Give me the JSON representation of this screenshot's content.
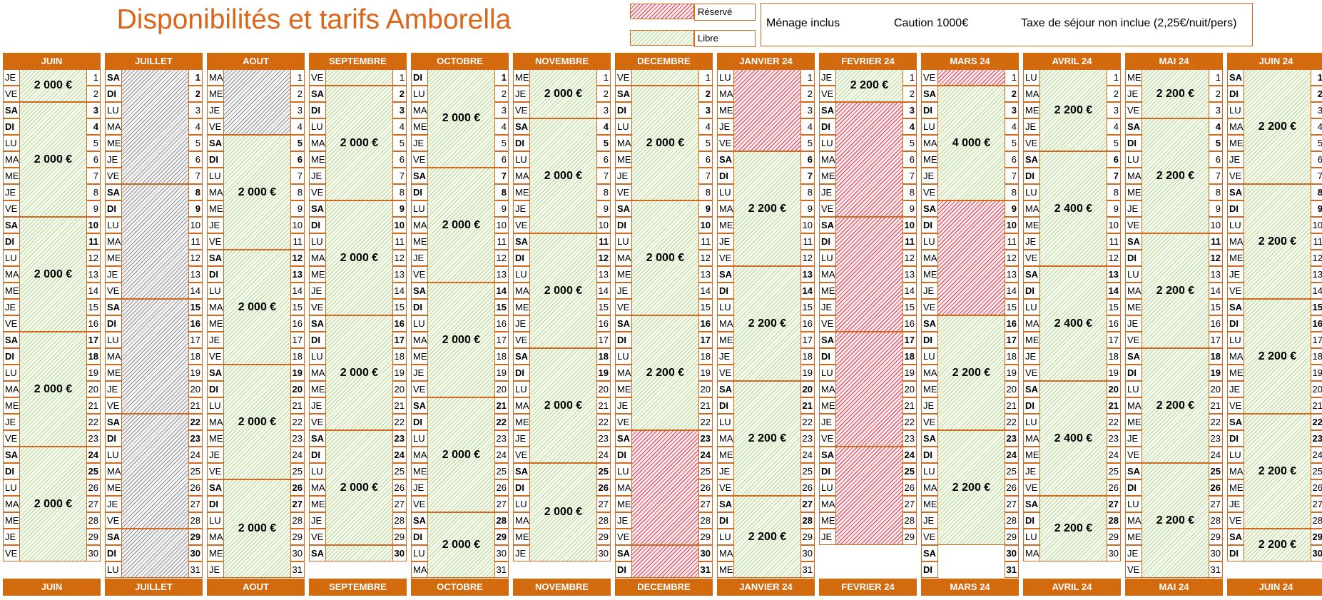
{
  "title": "Disponibilités et tarifs Amborella",
  "legend": [
    {
      "label": "Réservé",
      "status": "reserved",
      "color": "#E05A6E"
    },
    {
      "label": "Libre",
      "status": "free",
      "color": "#9BC57A"
    }
  ],
  "info": {
    "cleaning": "Ménage inclus",
    "deposit": "Caution 1000€",
    "tax": "Taxe de séjour non inclue (2,25€/nuit/pers)"
  },
  "months": [
    {
      "name": "JUIN",
      "days": 30,
      "first": "JE",
      "blocks": [
        {
          "s": 1,
          "e": 2,
          "st": "free",
          "p": "2 000 €"
        },
        {
          "s": 3,
          "e": 9,
          "st": "free",
          "p": "2 000 €"
        },
        {
          "s": 10,
          "e": 16,
          "st": "free",
          "p": "2 000 €"
        },
        {
          "s": 17,
          "e": 23,
          "st": "free",
          "p": "2 000 €"
        },
        {
          "s": 24,
          "e": 30,
          "st": "free",
          "p": "2 000 €"
        }
      ]
    },
    {
      "name": "JUILLET",
      "days": 31,
      "first": "SA",
      "blocks": [
        {
          "s": 1,
          "e": 7,
          "st": "past",
          "p": ""
        },
        {
          "s": 8,
          "e": 14,
          "st": "past",
          "p": ""
        },
        {
          "s": 15,
          "e": 21,
          "st": "past",
          "p": ""
        },
        {
          "s": 22,
          "e": 28,
          "st": "past",
          "p": ""
        },
        {
          "s": 29,
          "e": 31,
          "st": "past",
          "p": ""
        }
      ]
    },
    {
      "name": "AOUT",
      "days": 31,
      "first": "MA",
      "blocks": [
        {
          "s": 1,
          "e": 4,
          "st": "past",
          "p": ""
        },
        {
          "s": 5,
          "e": 11,
          "st": "free",
          "p": "2 000 €"
        },
        {
          "s": 12,
          "e": 18,
          "st": "free",
          "p": "2 000 €"
        },
        {
          "s": 19,
          "e": 25,
          "st": "free",
          "p": "2 000 €"
        },
        {
          "s": 26,
          "e": 31,
          "st": "free",
          "p": "2 000 €"
        }
      ]
    },
    {
      "name": "SEPTEMBRE",
      "days": 30,
      "first": "VE",
      "blocks": [
        {
          "s": 1,
          "e": 1,
          "st": "free",
          "p": ""
        },
        {
          "s": 2,
          "e": 8,
          "st": "free",
          "p": "2 000 €"
        },
        {
          "s": 9,
          "e": 15,
          "st": "free",
          "p": "2 000 €"
        },
        {
          "s": 16,
          "e": 22,
          "st": "free",
          "p": "2 000 €"
        },
        {
          "s": 23,
          "e": 29,
          "st": "free",
          "p": "2 000 €"
        },
        {
          "s": 30,
          "e": 30,
          "st": "free",
          "p": ""
        }
      ]
    },
    {
      "name": "OCTOBRE",
      "days": 31,
      "first": "DI",
      "blocks": [
        {
          "s": 1,
          "e": 6,
          "st": "free",
          "p": "2 000 €"
        },
        {
          "s": 7,
          "e": 13,
          "st": "free",
          "p": "2 000 €"
        },
        {
          "s": 14,
          "e": 20,
          "st": "free",
          "p": "2 000 €"
        },
        {
          "s": 21,
          "e": 27,
          "st": "free",
          "p": "2 000 €"
        },
        {
          "s": 28,
          "e": 31,
          "st": "free",
          "p": "2 000 €"
        }
      ]
    },
    {
      "name": "NOVEMBRE",
      "days": 30,
      "first": "ME",
      "blocks": [
        {
          "s": 1,
          "e": 3,
          "st": "free",
          "p": "2 000 €"
        },
        {
          "s": 4,
          "e": 10,
          "st": "free",
          "p": "2 000 €"
        },
        {
          "s": 11,
          "e": 17,
          "st": "free",
          "p": "2 000 €"
        },
        {
          "s": 18,
          "e": 24,
          "st": "free",
          "p": "2 000 €"
        },
        {
          "s": 25,
          "e": 30,
          "st": "free",
          "p": "2 000 €"
        }
      ]
    },
    {
      "name": "DECEMBRE",
      "days": 31,
      "first": "VE",
      "blocks": [
        {
          "s": 1,
          "e": 1,
          "st": "free",
          "p": ""
        },
        {
          "s": 2,
          "e": 8,
          "st": "free",
          "p": "2 000 €"
        },
        {
          "s": 9,
          "e": 15,
          "st": "free",
          "p": "2 000 €"
        },
        {
          "s": 16,
          "e": 22,
          "st": "free",
          "p": "2 200 €"
        },
        {
          "s": 23,
          "e": 29,
          "st": "reserved",
          "p": ""
        },
        {
          "s": 30,
          "e": 31,
          "st": "reserved",
          "p": ""
        }
      ]
    },
    {
      "name": "JANVIER 24",
      "days": 31,
      "first": "LU",
      "blocks": [
        {
          "s": 1,
          "e": 5,
          "st": "reserved",
          "p": ""
        },
        {
          "s": 6,
          "e": 12,
          "st": "free",
          "p": "2 200 €"
        },
        {
          "s": 13,
          "e": 19,
          "st": "free",
          "p": "2 200 €"
        },
        {
          "s": 20,
          "e": 26,
          "st": "free",
          "p": "2 200 €"
        },
        {
          "s": 27,
          "e": 31,
          "st": "free",
          "p": "2 200 €"
        }
      ]
    },
    {
      "name": "FEVRIER 24",
      "days": 29,
      "first": "JE",
      "blocks": [
        {
          "s": 1,
          "e": 2,
          "st": "free",
          "p": "2 200 €"
        },
        {
          "s": 3,
          "e": 9,
          "st": "reserved",
          "p": ""
        },
        {
          "s": 10,
          "e": 16,
          "st": "reserved",
          "p": ""
        },
        {
          "s": 17,
          "e": 23,
          "st": "reserved",
          "p": ""
        },
        {
          "s": 24,
          "e": 29,
          "st": "reserved",
          "p": ""
        }
      ]
    },
    {
      "name": "MARS 24",
      "days": 31,
      "first": "VE",
      "blocks": [
        {
          "s": 1,
          "e": 1,
          "st": "reserved",
          "p": ""
        },
        {
          "s": 2,
          "e": 8,
          "st": "free",
          "p": "4 000 €"
        },
        {
          "s": 9,
          "e": 15,
          "st": "reserved",
          "p": ""
        },
        {
          "s": 16,
          "e": 22,
          "st": "free",
          "p": "2 200 €"
        },
        {
          "s": 23,
          "e": 29,
          "st": "free",
          "p": "2 200 €"
        }
      ]
    },
    {
      "name": "AVRIL 24",
      "days": 30,
      "first": "LU",
      "blocks": [
        {
          "s": 1,
          "e": 5,
          "st": "free",
          "p": "2 200 €"
        },
        {
          "s": 6,
          "e": 12,
          "st": "free",
          "p": "2 400 €"
        },
        {
          "s": 13,
          "e": 19,
          "st": "free",
          "p": "2 400 €"
        },
        {
          "s": 20,
          "e": 26,
          "st": "free",
          "p": "2 400 €"
        },
        {
          "s": 27,
          "e": 30,
          "st": "free",
          "p": "2 200 €"
        }
      ]
    },
    {
      "name": "MAI 24",
      "days": 31,
      "first": "ME",
      "blocks": [
        {
          "s": 1,
          "e": 3,
          "st": "free",
          "p": "2 200 €"
        },
        {
          "s": 4,
          "e": 10,
          "st": "free",
          "p": "2 200 €"
        },
        {
          "s": 11,
          "e": 17,
          "st": "free",
          "p": "2 200 €"
        },
        {
          "s": 18,
          "e": 24,
          "st": "free",
          "p": "2 200 €"
        },
        {
          "s": 25,
          "e": 31,
          "st": "free",
          "p": "2 200 €"
        }
      ]
    },
    {
      "name": "JUIN 24",
      "days": 30,
      "first": "SA",
      "blocks": [
        {
          "s": 1,
          "e": 7,
          "st": "free",
          "p": "2 200 €"
        },
        {
          "s": 8,
          "e": 14,
          "st": "free",
          "p": "2 200 €"
        },
        {
          "s": 15,
          "e": 21,
          "st": "free",
          "p": "2 200 €"
        },
        {
          "s": 22,
          "e": 28,
          "st": "free",
          "p": "2 200 €"
        },
        {
          "s": 29,
          "e": 30,
          "st": "free",
          "p": "2 200 €"
        }
      ]
    }
  ]
}
